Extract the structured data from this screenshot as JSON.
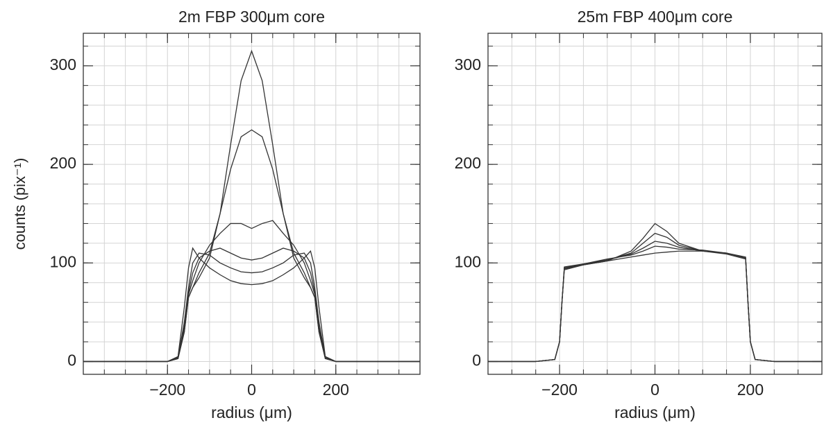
{
  "chart_data": [
    {
      "type": "line",
      "title": "2m FBP 300μm core",
      "xlabel": "radius (μm)",
      "ylabel": "counts (pix⁻¹)",
      "xlim": [
        -400,
        400
      ],
      "ylim": [
        -13,
        333
      ],
      "xticks": [
        {
          "value": -200,
          "label": "−200"
        },
        0,
        200
      ],
      "yticks": [
        0,
        100,
        200,
        300
      ],
      "xminorticks": [
        -350,
        -300,
        -250,
        -200,
        -150,
        -100,
        -50,
        0,
        50,
        100,
        150,
        200,
        250,
        300,
        350
      ],
      "yminorticks": [
        0,
        20,
        40,
        60,
        80,
        100,
        120,
        140,
        160,
        180,
        200,
        220,
        240,
        260,
        280,
        300,
        320
      ],
      "grid": true,
      "x": [
        -400,
        -300,
        -200,
        -175,
        -160,
        -150,
        -140,
        -125,
        -100,
        -75,
        -50,
        -25,
        0,
        25,
        50,
        75,
        100,
        125,
        140,
        150,
        160,
        175,
        200,
        300,
        400
      ],
      "series": [
        {
          "color": "#333333",
          "values": [
            0,
            0,
            0,
            3,
            30,
            65,
            75,
            85,
            105,
            150,
            220,
            285,
            315,
            285,
            220,
            150,
            105,
            85,
            75,
            65,
            30,
            3,
            0,
            0,
            0
          ]
        },
        {
          "color": "#333333",
          "values": [
            0,
            0,
            0,
            3,
            30,
            65,
            75,
            90,
            110,
            150,
            195,
            228,
            235,
            228,
            195,
            150,
            110,
            90,
            75,
            65,
            30,
            3,
            0,
            0,
            0
          ]
        },
        {
          "color": "#333333",
          "values": [
            0,
            0,
            0,
            3,
            32,
            68,
            82,
            100,
            118,
            130,
            140,
            140,
            135,
            140,
            143,
            130,
            118,
            100,
            82,
            68,
            32,
            3,
            0,
            0,
            0
          ]
        },
        {
          "color": "#333333",
          "values": [
            0,
            0,
            0,
            3,
            35,
            70,
            90,
            105,
            112,
            115,
            110,
            105,
            103,
            105,
            110,
            115,
            112,
            105,
            90,
            70,
            35,
            3,
            0,
            0,
            0
          ]
        },
        {
          "color": "#333333",
          "values": [
            0,
            0,
            0,
            4,
            40,
            75,
            100,
            110,
            108,
            100,
            95,
            91,
            90,
            91,
            95,
            100,
            108,
            110,
            100,
            75,
            40,
            4,
            0,
            0,
            0
          ]
        },
        {
          "color": "#333333",
          "values": [
            0,
            0,
            0,
            5,
            55,
            95,
            115,
            105,
            95,
            88,
            82,
            79,
            78,
            79,
            82,
            88,
            95,
            105,
            112,
            95,
            55,
            5,
            0,
            0,
            0
          ]
        }
      ]
    },
    {
      "type": "line",
      "title": "25m FBP 400μm core",
      "xlabel": "radius (μm)",
      "xlim": [
        -350,
        350
      ],
      "ylim": [
        -13,
        333
      ],
      "xticks": [
        {
          "value": -200,
          "label": "−200"
        },
        0,
        200
      ],
      "yticks": [
        0,
        100,
        200,
        300
      ],
      "xminorticks": [
        -300,
        -250,
        -200,
        -150,
        -100,
        -50,
        0,
        50,
        100,
        150,
        200,
        250,
        300
      ],
      "yminorticks": [
        0,
        20,
        40,
        60,
        80,
        100,
        120,
        140,
        160,
        180,
        200,
        220,
        240,
        260,
        280,
        300,
        320
      ],
      "grid": true,
      "x": [
        -350,
        -250,
        -210,
        -200,
        -195,
        -190,
        -150,
        -100,
        -50,
        -25,
        0,
        25,
        50,
        100,
        150,
        190,
        195,
        200,
        210,
        250,
        350
      ],
      "series": [
        {
          "color": "#333333",
          "values": [
            0,
            0,
            2,
            20,
            60,
            93,
            98,
            102,
            112,
            125,
            140,
            132,
            120,
            112,
            110,
            105,
            60,
            20,
            2,
            0,
            0
          ]
        },
        {
          "color": "#333333",
          "values": [
            0,
            0,
            2,
            20,
            60,
            94,
            98,
            103,
            110,
            120,
            130,
            126,
            118,
            112,
            110,
            105,
            60,
            20,
            2,
            0,
            0
          ]
        },
        {
          "color": "#333333",
          "values": [
            0,
            0,
            2,
            20,
            60,
            95,
            99,
            103,
            109,
            115,
            122,
            120,
            116,
            112,
            109,
            104,
            60,
            20,
            2,
            0,
            0
          ]
        },
        {
          "color": "#333333",
          "values": [
            0,
            0,
            2,
            20,
            60,
            96,
            99,
            104,
            108,
            112,
            117,
            116,
            114,
            113,
            110,
            106,
            60,
            20,
            2,
            0,
            0
          ]
        },
        {
          "color": "#333333",
          "values": [
            0,
            0,
            2,
            20,
            60,
            95,
            98,
            102,
            106,
            108,
            110,
            111,
            112,
            112,
            110,
            105,
            60,
            20,
            2,
            0,
            0
          ]
        }
      ]
    }
  ]
}
